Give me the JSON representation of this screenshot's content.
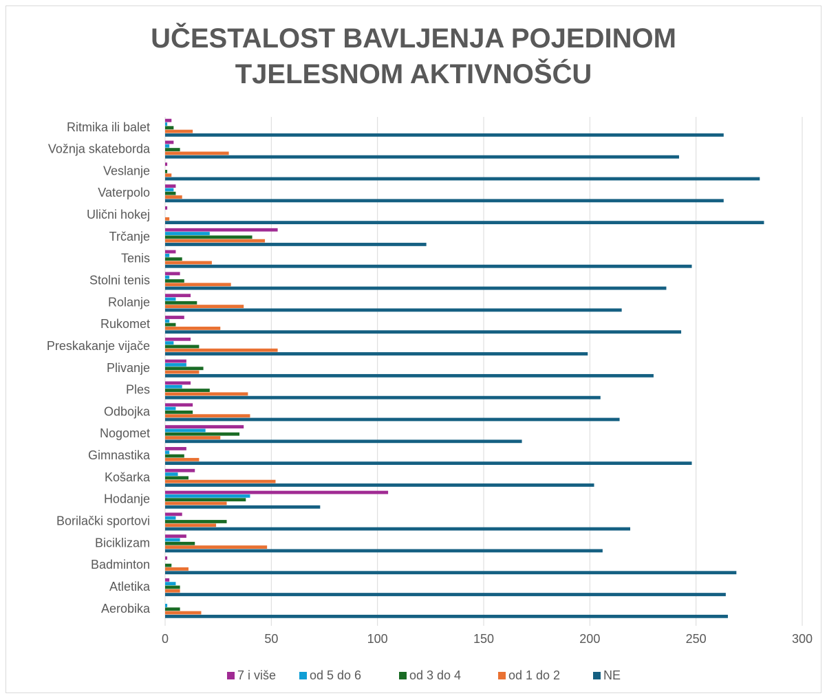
{
  "chart_data": {
    "type": "bar",
    "orientation": "horizontal",
    "title": "UČESTALOST BAVLJENJA POJEDINOM TJELESNOM AKTIVNOŠĆU",
    "categories": [
      "Ritmika ili balet",
      "Vožnja skateborda",
      "Veslanje",
      "Vaterpolo",
      "Ulični hokej",
      "Trčanje",
      "Tenis",
      "Stolni tenis",
      "Rolanje",
      "Rukomet",
      "Preskakanje vijače",
      "Plivanje",
      "Ples",
      "Odbojka",
      "Nogomet",
      "Gimnastika",
      "Košarka",
      "Hodanje",
      "Borilački sportovi",
      "Biciklizam",
      "Badminton",
      "Atletika",
      "Aerobika"
    ],
    "series": [
      {
        "name": "7 i više",
        "color": "#a02b93",
        "values": [
          3,
          4,
          1,
          5,
          1,
          53,
          5,
          7,
          12,
          9,
          12,
          10,
          12,
          13,
          37,
          10,
          14,
          105,
          8,
          10,
          1,
          2,
          0
        ]
      },
      {
        "name": "od 5 do 6",
        "color": "#0f9ed5",
        "values": [
          1,
          2,
          0,
          4,
          0,
          21,
          2,
          2,
          5,
          2,
          4,
          10,
          8,
          5,
          19,
          2,
          6,
          40,
          5,
          7,
          0,
          5,
          1
        ]
      },
      {
        "name": "od 3 do 4",
        "color": "#196b24",
        "values": [
          4,
          7,
          1,
          5,
          0,
          41,
          8,
          9,
          15,
          5,
          16,
          18,
          21,
          13,
          35,
          9,
          11,
          38,
          29,
          14,
          3,
          7,
          7
        ]
      },
      {
        "name": "od 1 do 2",
        "color": "#e97132",
        "values": [
          13,
          30,
          3,
          8,
          2,
          47,
          22,
          31,
          37,
          26,
          53,
          16,
          39,
          40,
          26,
          16,
          52,
          29,
          24,
          48,
          11,
          7,
          17
        ]
      },
      {
        "name": "NE",
        "color": "#156082",
        "values": [
          263,
          242,
          280,
          263,
          282,
          123,
          248,
          236,
          215,
          243,
          199,
          230,
          205,
          214,
          168,
          248,
          202,
          73,
          219,
          206,
          269,
          264,
          265
        ]
      }
    ],
    "xlim": [
      0,
      300
    ],
    "xticks": [
      0,
      50,
      100,
      150,
      200,
      250,
      300
    ],
    "grid": true,
    "legend": "bottom"
  }
}
